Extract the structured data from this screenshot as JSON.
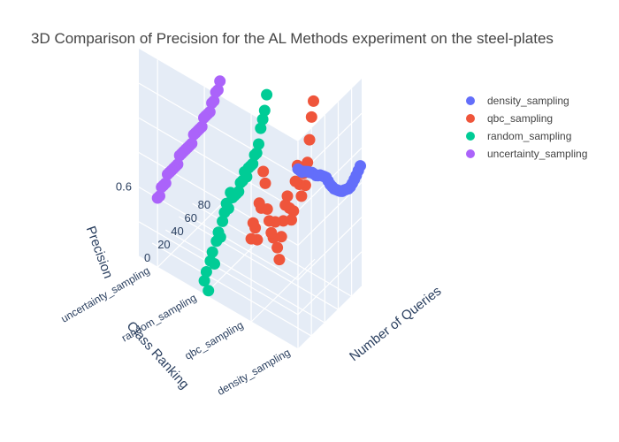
{
  "chart_data": {
    "type": "scatter3d",
    "title": "3D Comparison of Precision for the AL Methods experiment on the steel-plates",
    "axes": {
      "x": {
        "title": "Number of Queries",
        "ticks": [
          "0",
          "20",
          "40",
          "60",
          "80"
        ],
        "range": [
          0,
          95
        ]
      },
      "y": {
        "title": "Class Ranking",
        "ticks": [
          "density_sampling",
          "qbc_sampling",
          "random_sampling",
          "uncertainty_sampling"
        ]
      },
      "z": {
        "title": "Precision",
        "ticks": [
          "0.6"
        ],
        "range": [
          0.5,
          0.8
        ]
      }
    },
    "legend": {
      "position": "top-right"
    },
    "colors": {
      "density_sampling": "#636efa",
      "qbc_sampling": "#ef553b",
      "random_sampling": "#00cc96",
      "uncertainty_sampling": "#ab63fa"
    },
    "series": [
      {
        "name": "density_sampling",
        "category_index": 0,
        "x": [
          0,
          3,
          6,
          9,
          12,
          15,
          18,
          21,
          24,
          27,
          30,
          33,
          36,
          39,
          42,
          45,
          48,
          51,
          54,
          57,
          60,
          63,
          66,
          69,
          72,
          75,
          78,
          81,
          84,
          87,
          90,
          93
        ],
        "y": [
          0.76,
          0.755,
          0.75,
          0.748,
          0.745,
          0.742,
          0.738,
          0.735,
          0.73,
          0.725,
          0.722,
          0.72,
          0.716,
          0.712,
          0.708,
          0.7,
          0.692,
          0.686,
          0.68,
          0.676,
          0.672,
          0.668,
          0.665,
          0.664,
          0.662,
          0.66,
          0.66,
          0.662,
          0.665,
          0.668,
          0.672,
          0.676
        ]
      },
      {
        "name": "qbc_sampling",
        "category_index": 1,
        "x": [
          0,
          3,
          6,
          9,
          12,
          15,
          18,
          21,
          24,
          27,
          30,
          33,
          36,
          39,
          42,
          45,
          48,
          51,
          54,
          57,
          60,
          63,
          66,
          69,
          72,
          75,
          78,
          81,
          84,
          87,
          90,
          93
        ],
        "y": [
          0.62,
          0.64,
          0.63,
          0.61,
          0.66,
          0.65,
          0.7,
          0.68,
          0.64,
          0.62,
          0.6,
          0.59,
          0.61,
          0.57,
          0.55,
          0.58,
          0.6,
          0.62,
          0.63,
          0.61,
          0.59,
          0.6,
          0.64,
          0.66,
          0.63,
          0.61,
          0.64,
          0.62,
          0.65,
          0.68,
          0.71,
          0.73
        ]
      },
      {
        "name": "random_sampling",
        "category_index": 2,
        "x": [
          0,
          3,
          6,
          9,
          12,
          15,
          18,
          21,
          24,
          27,
          30,
          33,
          36,
          39,
          42,
          45,
          48,
          51,
          54,
          57,
          60,
          63,
          66,
          69,
          72,
          75,
          78,
          81,
          84,
          87,
          90,
          93
        ],
        "y": [
          0.52,
          0.53,
          0.5,
          0.54,
          0.55,
          0.53,
          0.56,
          0.57,
          0.56,
          0.58,
          0.59,
          0.6,
          0.59,
          0.61,
          0.6,
          0.6,
          0.6,
          0.6,
          0.61,
          0.61,
          0.62,
          0.61,
          0.62,
          0.62,
          0.62,
          0.63,
          0.63,
          0.64,
          0.66,
          0.67,
          0.68,
          0.7
        ]
      },
      {
        "name": "uncertainty_sampling",
        "category_index": 3,
        "x": [
          0,
          3,
          6,
          9,
          12,
          15,
          18,
          21,
          24,
          27,
          30,
          33,
          36,
          39,
          42,
          45,
          48,
          51,
          54,
          57,
          60,
          63,
          66,
          69,
          72,
          75,
          78,
          81,
          84,
          87,
          90,
          93
        ],
        "y": [
          0.6,
          0.6,
          0.61,
          0.61,
          0.61,
          0.62,
          0.62,
          0.62,
          0.62,
          0.62,
          0.62,
          0.63,
          0.63,
          0.63,
          0.63,
          0.63,
          0.63,
          0.63,
          0.64,
          0.64,
          0.64,
          0.64,
          0.64,
          0.65,
          0.65,
          0.65,
          0.65,
          0.66,
          0.66,
          0.67,
          0.67,
          0.68
        ]
      }
    ]
  }
}
